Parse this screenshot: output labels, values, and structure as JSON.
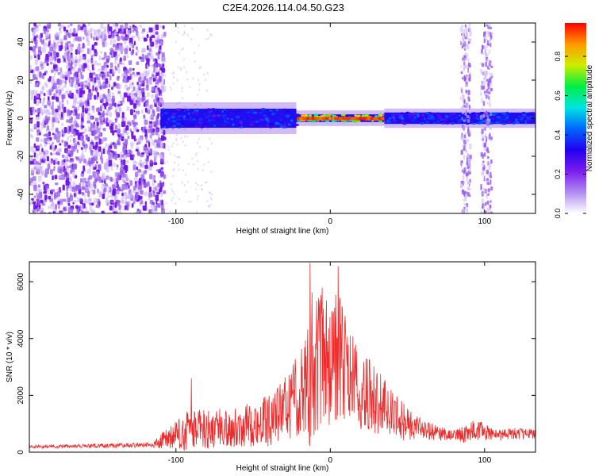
{
  "title": "C2E4.2026.114.04.50.G23",
  "colors": {
    "snr_line": "#ee2b2b",
    "axis": "#000000",
    "colormap": [
      "#ffffff",
      "#b08cf0",
      "#7a1cf0",
      "#2200ee",
      "#0066ff",
      "#00e5e0",
      "#00ee44",
      "#ccee00",
      "#ff9900",
      "#ff0000"
    ]
  },
  "chart_data": [
    {
      "type": "heatmap",
      "name": "spectrogram",
      "xlabel": "Height of straight line (km)",
      "ylabel": "Frequency (Hz)",
      "xlim": [
        -195,
        133
      ],
      "ylim": [
        -50,
        50
      ],
      "xticks": [
        -100,
        0,
        100
      ],
      "xtick_labels": [
        "-100",
        "0",
        "100"
      ],
      "yticks": [
        -40,
        -20,
        0,
        20,
        40
      ],
      "ytick_labels": [
        "-40",
        "-20",
        "0",
        "20",
        "40"
      ],
      "colorbar": {
        "label": "Normalized spectral amplitude",
        "range": [
          0,
          0.97
        ],
        "ticks": [
          0,
          0.2,
          0.4,
          0.6,
          0.8
        ],
        "tick_labels": [
          "0.0",
          "0.2",
          "0.4",
          "0.6",
          "0.8"
        ]
      },
      "regions": [
        {
          "desc": "broadband noise",
          "x": [
            -195,
            -108
          ],
          "freq": [
            -50,
            50
          ],
          "amplitude": 0.25
        },
        {
          "desc": "signal band onset",
          "x": [
            -110,
            -22
          ],
          "freq": [
            -5,
            5
          ],
          "amplitude": 0.45
        },
        {
          "desc": "peak signal band",
          "x": [
            -22,
            35
          ],
          "freq": [
            -2,
            2
          ],
          "amplitude": 0.95
        },
        {
          "desc": "trailing signal band",
          "x": [
            35,
            133
          ],
          "freq": [
            -3,
            3
          ],
          "amplitude": 0.45
        },
        {
          "desc": "vertical streak",
          "x": [
            84,
            90
          ],
          "freq": [
            -50,
            50
          ],
          "amplitude": 0.2
        },
        {
          "desc": "vertical streak",
          "x": [
            97,
            104
          ],
          "freq": [
            -50,
            50
          ],
          "amplitude": 0.2
        }
      ]
    },
    {
      "type": "line",
      "name": "snr",
      "xlabel": "Height of straight line (km)",
      "ylabel": "SNR (10 * v/v)",
      "xlim": [
        -195,
        133
      ],
      "ylim": [
        0,
        6700
      ],
      "xticks": [
        -100,
        0,
        100
      ],
      "xtick_labels": [
        "-100",
        "0",
        "100"
      ],
      "yticks": [
        0,
        2000,
        4000,
        6000
      ],
      "ytick_labels": [
        "0",
        "2000",
        "4000",
        "6000"
      ],
      "envelope": {
        "x": [
          -195,
          -150,
          -115,
          -108,
          -100,
          -90,
          -80,
          -60,
          -40,
          -30,
          -20,
          -15,
          -12,
          -5,
          0,
          5,
          10,
          20,
          30,
          40,
          50,
          60,
          70,
          80,
          88,
          95,
          100,
          110,
          120,
          133
        ],
        "mid": [
          200,
          220,
          260,
          400,
          600,
          800,
          800,
          900,
          1100,
          1500,
          2100,
          2600,
          3000,
          3300,
          3000,
          3600,
          2900,
          2200,
          1800,
          1300,
          1000,
          800,
          650,
          600,
          650,
          800,
          700,
          600,
          650,
          650
        ],
        "amp": [
          60,
          70,
          90,
          350,
          500,
          800,
          700,
          700,
          900,
          1100,
          1500,
          2200,
          3000,
          2600,
          2000,
          2600,
          1800,
          1400,
          1200,
          900,
          600,
          400,
          250,
          180,
          350,
          400,
          300,
          200,
          200,
          200
        ]
      },
      "peaks": [
        {
          "x": -13,
          "y": 6650
        },
        {
          "x": 5,
          "y": 6550
        },
        {
          "x": -90,
          "y": 2600
        }
      ]
    }
  ]
}
